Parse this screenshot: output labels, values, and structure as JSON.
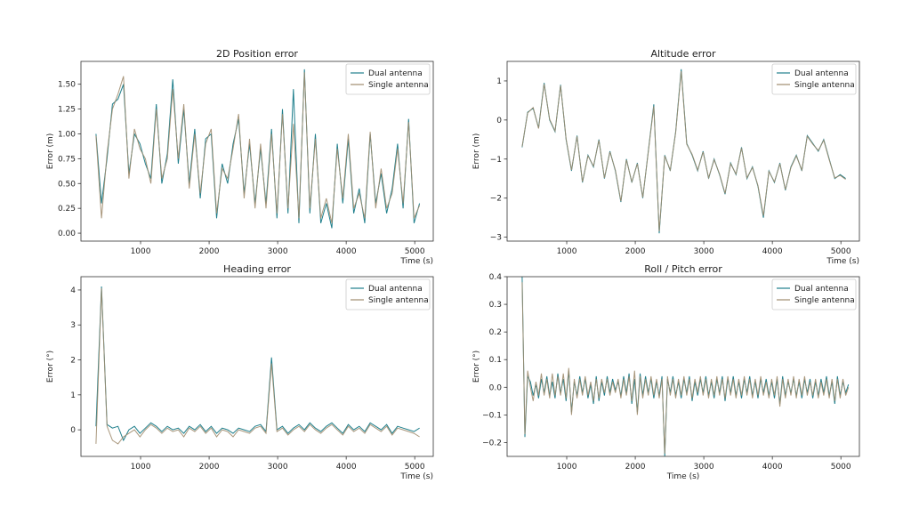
{
  "colors": {
    "dual": "#1f7f8c",
    "single": "#a08c6e"
  },
  "chart_data": [
    {
      "type": "line",
      "title": "2D Position error",
      "xlabel": "Time (s)",
      "ylabel": "Error (m)",
      "xlim": [
        130,
        5270
      ],
      "ylim": [
        -0.08,
        1.73
      ],
      "xticks": [
        1000,
        2000,
        3000,
        4000,
        5000
      ],
      "xtick_labels": [
        "1000",
        "2000",
        "3000",
        "4000",
        "5000"
      ],
      "yticks": [
        0,
        0.25,
        0.5,
        0.75,
        1.0,
        1.25,
        1.5
      ],
      "ytick_labels": [
        "0.00",
        "0.25",
        "0.50",
        "0.75",
        "1.00",
        "1.25",
        "1.50"
      ],
      "legend": "top-right",
      "x_start": 350,
      "x_step": 80,
      "series": [
        {
          "name": "Dual antenna",
          "values": [
            1.0,
            0.3,
            0.75,
            1.3,
            1.35,
            1.5,
            0.6,
            1.0,
            0.9,
            0.7,
            0.55,
            1.3,
            0.5,
            0.8,
            1.55,
            0.7,
            1.25,
            0.5,
            1.05,
            0.35,
            0.95,
            1.0,
            0.15,
            0.7,
            0.5,
            0.9,
            1.15,
            0.4,
            0.9,
            0.3,
            0.85,
            0.3,
            1.05,
            0.15,
            1.25,
            0.2,
            1.45,
            0.1,
            1.65,
            0.2,
            1.0,
            0.1,
            0.3,
            0.05,
            0.9,
            0.3,
            0.95,
            0.2,
            0.45,
            0.1,
            1.0,
            0.3,
            0.6,
            0.2,
            0.45,
            0.9,
            0.25,
            1.15,
            0.1,
            0.3
          ]
        },
        {
          "name": "Single antenna",
          "values": [
            0.98,
            0.15,
            0.8,
            1.25,
            1.4,
            1.58,
            0.55,
            1.05,
            0.85,
            0.75,
            0.5,
            1.25,
            0.55,
            0.75,
            1.45,
            0.75,
            1.3,
            0.45,
            1.0,
            0.4,
            0.9,
            1.05,
            0.2,
            0.65,
            0.55,
            0.85,
            1.2,
            0.35,
            0.95,
            0.25,
            0.9,
            0.25,
            1.0,
            0.2,
            1.2,
            0.25,
            1.1,
            0.15,
            1.62,
            0.25,
            0.95,
            0.15,
            0.35,
            0.1,
            0.85,
            0.35,
            1.0,
            0.25,
            0.4,
            0.15,
            1.02,
            0.25,
            0.65,
            0.25,
            0.4,
            0.85,
            0.3,
            1.12,
            0.15,
            0.28
          ]
        }
      ]
    },
    {
      "type": "line",
      "title": "Altitude error",
      "xlabel": "Time (s)",
      "ylabel": "Error (m)",
      "xlim": [
        130,
        5270
      ],
      "ylim": [
        -3.1,
        1.5
      ],
      "xticks": [
        1000,
        2000,
        3000,
        4000,
        5000
      ],
      "xtick_labels": [
        "1000",
        "2000",
        "3000",
        "4000",
        "5000"
      ],
      "yticks": [
        -3,
        -2,
        -1,
        0,
        1
      ],
      "ytick_labels": [
        "−3",
        "−2",
        "−1",
        "0",
        "1"
      ],
      "legend": "top-right",
      "x_start": 350,
      "x_step": 80,
      "series": [
        {
          "name": "Dual antenna",
          "values": [
            -0.7,
            0.2,
            0.3,
            -0.2,
            0.95,
            0.0,
            -0.3,
            0.9,
            -0.5,
            -1.3,
            -0.4,
            -1.6,
            -0.9,
            -1.2,
            -0.5,
            -1.5,
            -0.8,
            -1.3,
            -2.1,
            -1.0,
            -1.6,
            -1.1,
            -2.0,
            -0.8,
            0.4,
            -2.9,
            -0.9,
            -1.3,
            -0.3,
            1.3,
            -0.6,
            -0.9,
            -1.3,
            -0.8,
            -1.5,
            -1.0,
            -1.4,
            -1.9,
            -1.1,
            -1.4,
            -0.7,
            -1.5,
            -1.2,
            -1.7,
            -2.5,
            -1.3,
            -1.6,
            -1.1,
            -1.8,
            -1.2,
            -0.9,
            -1.3,
            -0.4,
            -0.6,
            -0.8,
            -0.5,
            -1.0,
            -1.5,
            -1.4,
            -1.5
          ]
        },
        {
          "name": "Single antenna",
          "values": [
            -0.68,
            0.18,
            0.32,
            -0.22,
            0.92,
            0.02,
            -0.28,
            0.88,
            -0.48,
            -1.28,
            -0.42,
            -1.58,
            -0.92,
            -1.18,
            -0.52,
            -1.48,
            -0.82,
            -1.28,
            -2.08,
            -1.02,
            -1.58,
            -1.12,
            -1.98,
            -0.82,
            0.35,
            -2.85,
            -0.92,
            -1.28,
            -0.32,
            1.25,
            -0.62,
            -0.88,
            -1.28,
            -0.82,
            -1.48,
            -1.02,
            -1.38,
            -1.88,
            -1.12,
            -1.38,
            -0.72,
            -1.48,
            -1.22,
            -1.68,
            -2.45,
            -1.32,
            -1.58,
            -1.12,
            -1.78,
            -1.22,
            -0.92,
            -1.28,
            -0.42,
            -0.62,
            -0.78,
            -0.52,
            -1.02,
            -1.48,
            -1.42,
            -1.52
          ]
        }
      ]
    },
    {
      "type": "line",
      "title": "Heading error",
      "xlabel": "Time (s)",
      "ylabel": "Error (°)",
      "xlim": [
        130,
        5270
      ],
      "ylim": [
        -0.76,
        4.38
      ],
      "xticks": [
        1000,
        2000,
        3000,
        4000,
        5000
      ],
      "xtick_labels": [
        "1000",
        "2000",
        "3000",
        "4000",
        "5000"
      ],
      "yticks": [
        0,
        1,
        2,
        3,
        4
      ],
      "ytick_labels": [
        "0",
        "1",
        "2",
        "3",
        "4"
      ],
      "legend": "top-right",
      "x_start": 350,
      "x_step": 80,
      "series": [
        {
          "name": "Dual antenna",
          "values": [
            0.1,
            4.1,
            0.15,
            0.05,
            0.1,
            -0.3,
            0.0,
            0.1,
            -0.1,
            0.05,
            0.2,
            0.1,
            -0.05,
            0.1,
            0.0,
            0.05,
            -0.1,
            0.1,
            0.0,
            0.15,
            -0.05,
            0.1,
            -0.1,
            0.05,
            0.0,
            -0.1,
            0.05,
            0.0,
            -0.05,
            0.1,
            0.15,
            -0.05,
            2.07,
            0.0,
            0.1,
            -0.1,
            0.05,
            0.15,
            0.0,
            0.2,
            0.05,
            -0.05,
            0.1,
            0.2,
            0.05,
            -0.1,
            0.15,
            0.0,
            0.1,
            -0.05,
            0.2,
            0.1,
            0.0,
            0.15,
            -0.1,
            0.1,
            0.05,
            0.0,
            -0.05,
            0.05
          ]
        },
        {
          "name": "Single antenna",
          "values": [
            -0.4,
            4.05,
            0.1,
            -0.3,
            -0.4,
            -0.2,
            -0.1,
            0.0,
            -0.2,
            0.0,
            0.15,
            0.05,
            -0.1,
            0.05,
            -0.05,
            0.0,
            -0.2,
            0.05,
            -0.05,
            0.1,
            -0.1,
            0.05,
            -0.2,
            0.0,
            -0.05,
            -0.2,
            0.0,
            -0.05,
            -0.1,
            0.05,
            0.1,
            -0.1,
            1.9,
            -0.05,
            0.05,
            -0.15,
            0.0,
            0.1,
            -0.05,
            0.15,
            0.0,
            -0.1,
            0.05,
            0.15,
            0.0,
            -0.15,
            0.1,
            -0.05,
            0.05,
            -0.1,
            0.15,
            0.05,
            -0.05,
            0.1,
            -0.15,
            0.05,
            0.0,
            -0.05,
            -0.1,
            -0.2
          ]
        }
      ]
    },
    {
      "type": "line",
      "title": "Roll / Pitch error",
      "xlabel": "Time (s)",
      "ylabel": "Error (°)",
      "xlim": [
        130,
        5270
      ],
      "ylim": [
        -0.25,
        0.4
      ],
      "xticks": [
        1000,
        2000,
        3000,
        4000,
        5000
      ],
      "xtick_labels": [
        "1000",
        "2000",
        "3000",
        "4000",
        "5000"
      ],
      "yticks": [
        -0.2,
        -0.1,
        0.0,
        0.1,
        0.2,
        0.3,
        0.4
      ],
      "ytick_labels": [
        "−0.2",
        "−0.1",
        "0.0",
        "0.1",
        "0.2",
        "0.3",
        "0.4"
      ],
      "legend": "top-right",
      "x_start": 350,
      "x_step": 40,
      "series": [
        {
          "name": "Dual antenna",
          "values": [
            0.4,
            -0.18,
            0.04,
            0.02,
            -0.03,
            0.01,
            -0.04,
            0.03,
            -0.02,
            0.04,
            -0.03,
            0.02,
            -0.04,
            0.05,
            -0.02,
            0.03,
            -0.05,
            0.06,
            -0.09,
            0.02,
            -0.03,
            0.04,
            -0.02,
            0.03,
            -0.04,
            0.01,
            -0.06,
            0.04,
            -0.05,
            0.02,
            -0.03,
            0.04,
            -0.02,
            0.03,
            -0.01,
            0.02,
            -0.03,
            0.04,
            -0.02,
            0.05,
            -0.06,
            0.03,
            -0.09,
            0.05,
            -0.03,
            0.04,
            -0.02,
            0.03,
            -0.04,
            0.02,
            -0.03,
            0.04,
            -0.25,
            0.03,
            -0.02,
            0.04,
            -0.03,
            0.02,
            -0.04,
            0.03,
            -0.02,
            0.04,
            -0.05,
            0.02,
            -0.03,
            0.03,
            -0.02,
            0.04,
            -0.03,
            0.02,
            -0.04,
            0.03,
            -0.02,
            0.04,
            -0.05,
            0.03,
            -0.02,
            0.04,
            -0.03,
            0.02,
            -0.04,
            0.03,
            -0.02,
            0.04,
            -0.03,
            0.02,
            -0.04,
            0.03,
            -0.02,
            0.03,
            -0.03,
            0.02,
            -0.04,
            0.03,
            -0.06,
            0.04,
            -0.03,
            0.02,
            -0.02,
            0.03,
            -0.03,
            0.02,
            -0.04,
            0.03,
            -0.02,
            0.03,
            -0.04,
            0.02,
            -0.03,
            0.03,
            -0.02,
            0.04,
            -0.03,
            0.02,
            -0.06,
            0.04,
            -0.03,
            0.02,
            -0.02,
            0.01
          ]
        },
        {
          "name": "Single antenna",
          "values": [
            0.38,
            -0.17,
            0.06,
            0.0,
            -0.05,
            0.02,
            -0.03,
            0.05,
            -0.03,
            0.03,
            -0.04,
            0.05,
            -0.03,
            0.04,
            -0.03,
            0.05,
            -0.04,
            0.07,
            -0.1,
            0.03,
            -0.04,
            0.03,
            -0.03,
            0.04,
            -0.03,
            0.02,
            -0.05,
            0.03,
            -0.04,
            0.03,
            -0.02,
            0.03,
            -0.03,
            0.02,
            -0.02,
            0.03,
            -0.04,
            0.03,
            -0.03,
            0.04,
            -0.05,
            0.06,
            -0.1,
            0.04,
            -0.04,
            0.03,
            -0.03,
            0.04,
            -0.03,
            0.03,
            -0.04,
            0.03,
            -0.24,
            0.04,
            -0.03,
            0.03,
            -0.04,
            0.03,
            -0.03,
            0.04,
            -0.03,
            0.03,
            -0.04,
            0.03,
            -0.02,
            0.04,
            -0.03,
            0.03,
            -0.04,
            0.03,
            -0.03,
            0.04,
            -0.03,
            0.03,
            -0.04,
            0.04,
            -0.03,
            0.03,
            -0.04,
            0.03,
            -0.03,
            0.04,
            -0.03,
            0.03,
            -0.04,
            0.03,
            -0.03,
            0.04,
            -0.03,
            0.02,
            -0.04,
            0.03,
            -0.03,
            0.04,
            -0.07,
            0.03,
            -0.04,
            0.03,
            -0.03,
            0.04,
            -0.04,
            0.03,
            -0.03,
            0.04,
            -0.03,
            0.02,
            -0.03,
            0.03,
            -0.04,
            0.02,
            -0.03,
            0.03,
            -0.04,
            0.03,
            -0.05,
            0.03,
            -0.04,
            0.03,
            -0.03,
            0.0
          ]
        }
      ]
    }
  ]
}
